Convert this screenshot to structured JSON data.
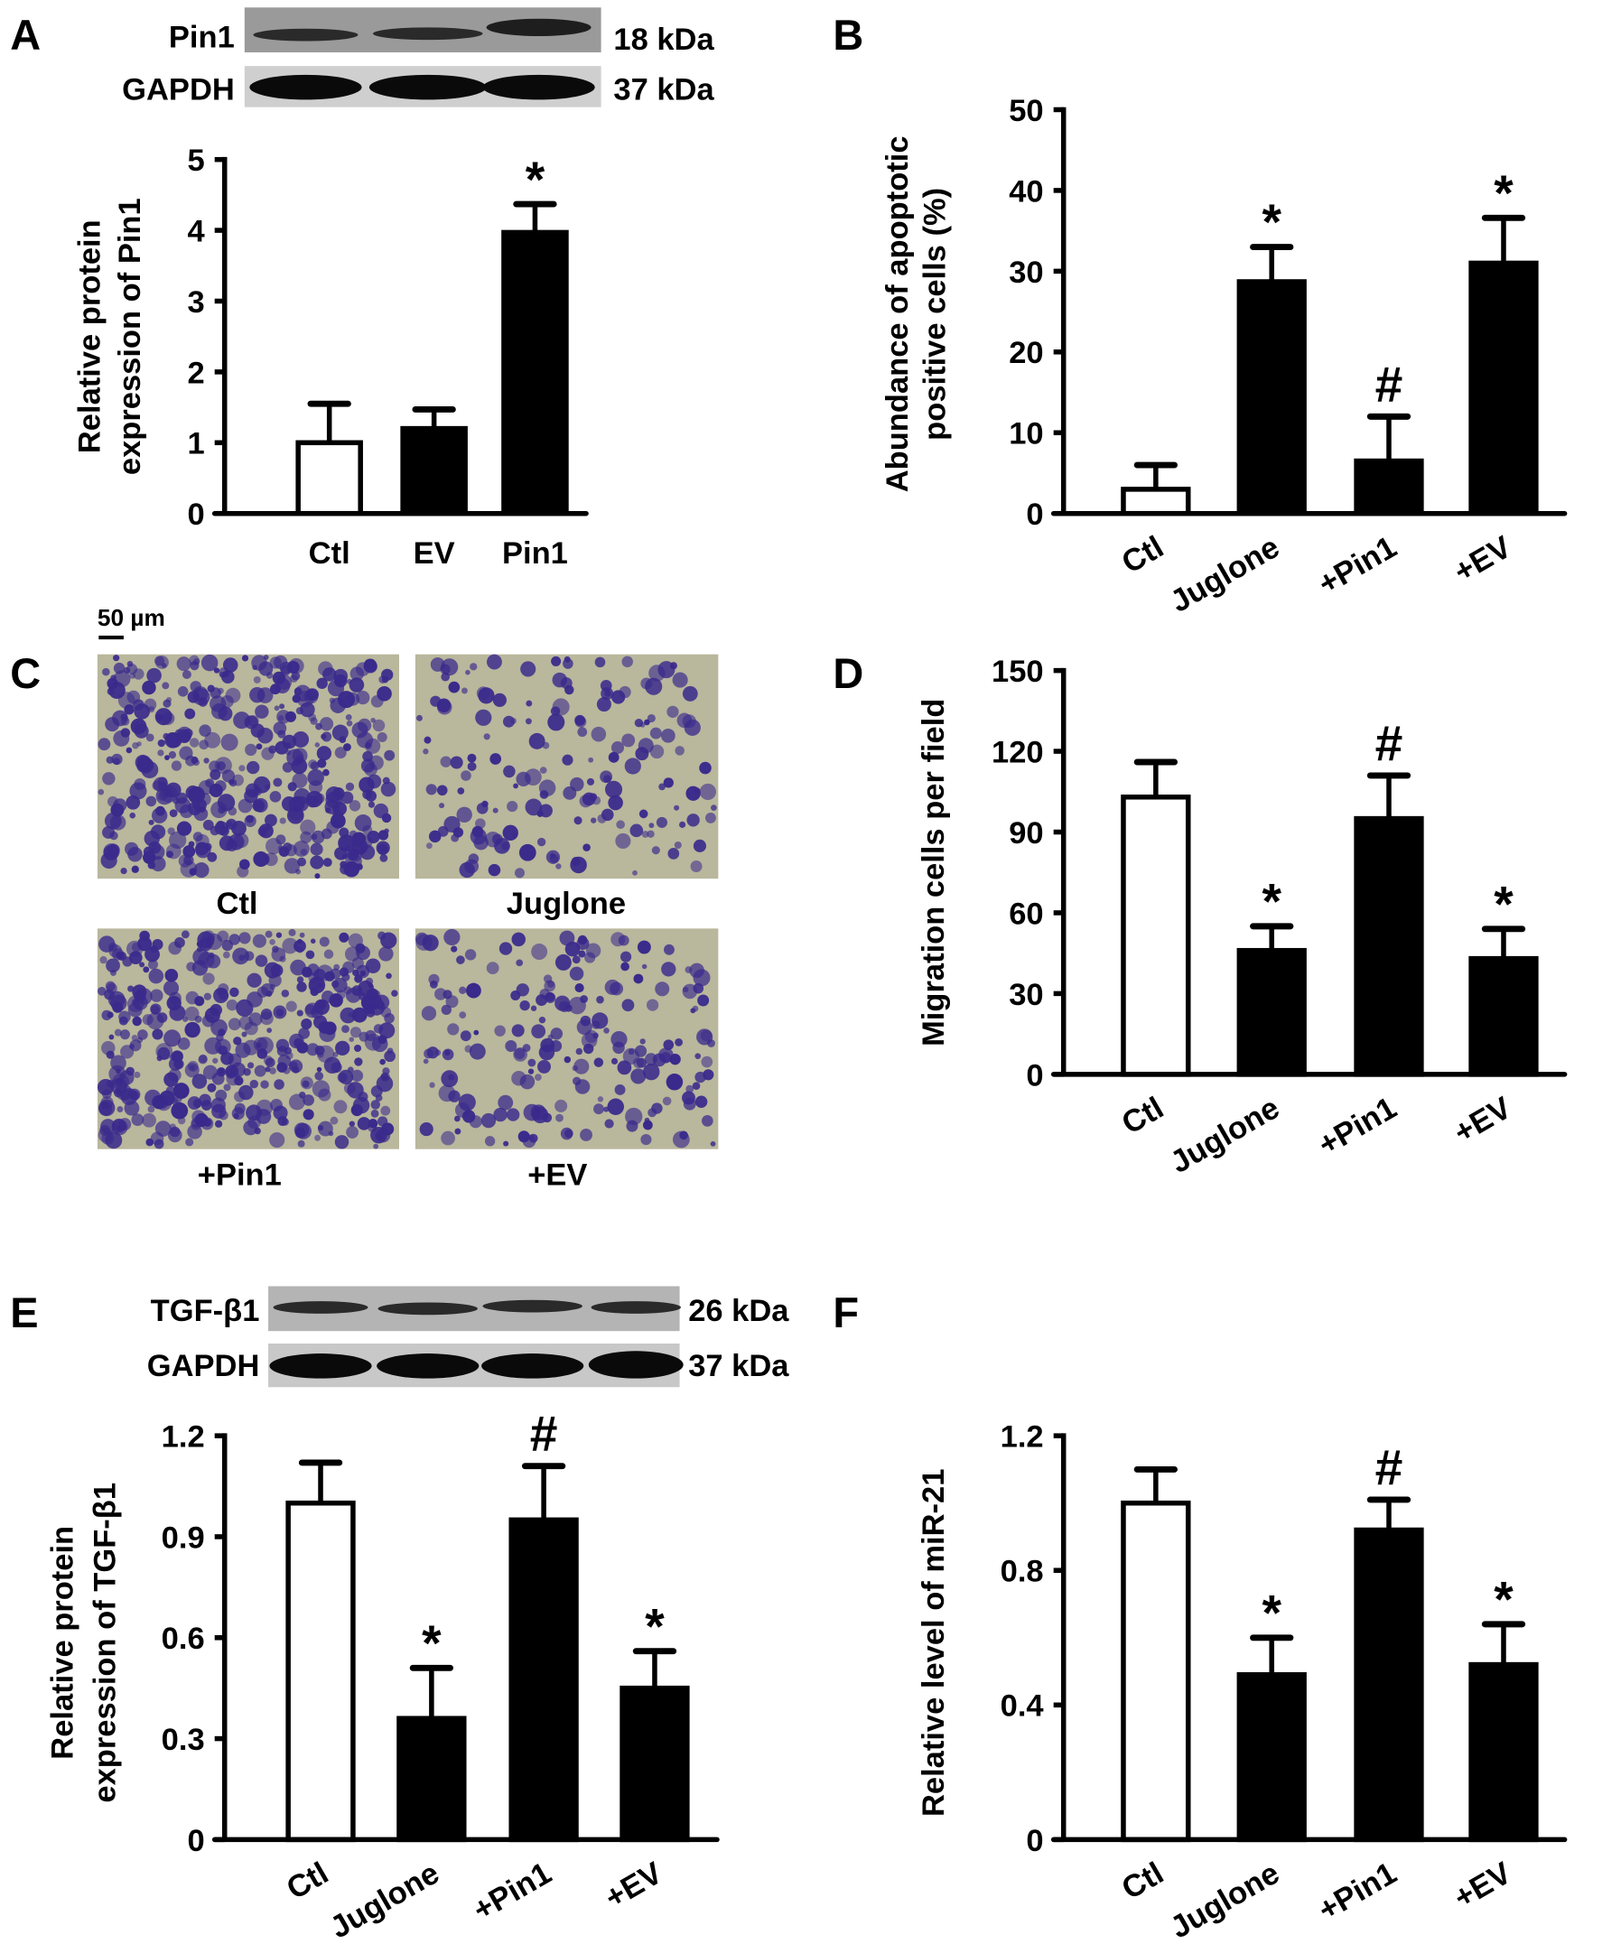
{
  "panels": {
    "A": {
      "letter": "A",
      "blot": {
        "rows": [
          {
            "protein": "Pin1",
            "size": "18 kDa"
          },
          {
            "protein": "GAPDH",
            "size": "37 kDa"
          }
        ]
      }
    },
    "B": {
      "letter": "B"
    },
    "C": {
      "letter": "C",
      "scale_bar": "50 µm",
      "images": [
        "Ctl",
        "Juglone",
        "+Pin1",
        "+EV"
      ]
    },
    "D": {
      "letter": "D"
    },
    "E": {
      "letter": "E",
      "blot": {
        "rows": [
          {
            "protein": "TGF-β1",
            "size": "26 kDa"
          },
          {
            "protein": "GAPDH",
            "size": "37 kDa"
          }
        ]
      }
    },
    "F": {
      "letter": "F"
    }
  },
  "colors": {
    "control_fill": "#ffffff",
    "treatment_fill": "#000000",
    "axis": "#000000",
    "stain_background": "#b9b79c",
    "stain_cells": "#3a2a8c"
  },
  "chart_data": [
    {
      "panel": "A",
      "type": "bar",
      "ylabel": [
        "Relative protein",
        "expression of Pin1"
      ],
      "categories": [
        "Ctl",
        "EV",
        "Pin1"
      ],
      "values": [
        1.0,
        1.2,
        3.97
      ],
      "errors": [
        0.55,
        0.27,
        0.4
      ],
      "annotations": [
        "",
        "",
        "*"
      ],
      "ylim": [
        0,
        5
      ],
      "yticks": [
        "0",
        "1",
        "2",
        "3",
        "4",
        "5"
      ],
      "grid": false
    },
    {
      "panel": "B",
      "type": "bar",
      "ylabel": [
        "Abundance of apoptotic",
        "positive cells (%)"
      ],
      "categories": [
        "Ctl",
        "Juglone",
        "+Pin1",
        "+EV"
      ],
      "values": [
        3,
        28.7,
        6.5,
        31
      ],
      "errors": [
        3,
        4.3,
        5.5,
        5.6
      ],
      "annotations": [
        "",
        "*",
        "#",
        "*"
      ],
      "ylim": [
        0,
        50
      ],
      "yticks": [
        "0",
        "10",
        "20",
        "30",
        "40",
        "50"
      ],
      "grid": false
    },
    {
      "panel": "D",
      "type": "bar",
      "ylabel": [
        "Migration cells per field"
      ],
      "categories": [
        "Ctl",
        "Juglone",
        "+Pin1",
        "+EV"
      ],
      "values": [
        103,
        46,
        95,
        43
      ],
      "errors": [
        13,
        9,
        16,
        11
      ],
      "annotations": [
        "",
        "*",
        "#",
        "*"
      ],
      "ylim": [
        0,
        150
      ],
      "yticks": [
        "0",
        "30",
        "60",
        "90",
        "120",
        "150"
      ],
      "grid": false
    },
    {
      "panel": "E",
      "type": "bar",
      "ylabel": [
        "Relative protein",
        "expression of TGF-β1"
      ],
      "categories": [
        "Ctl",
        "Juglone",
        "+Pin1",
        "+EV"
      ],
      "values": [
        1.0,
        0.36,
        0.95,
        0.45
      ],
      "errors": [
        0.12,
        0.15,
        0.16,
        0.11
      ],
      "annotations": [
        "",
        "*",
        "#",
        "*"
      ],
      "ylim": [
        0,
        1.2
      ],
      "yticks": [
        "0",
        "0.3",
        "0.6",
        "0.9",
        "1.2"
      ],
      "grid": false
    },
    {
      "panel": "F",
      "type": "bar",
      "ylabel": [
        "Relative level of miR-21"
      ],
      "categories": [
        "Ctl",
        "Juglone",
        "+Pin1",
        "+EV"
      ],
      "values": [
        1.0,
        0.49,
        0.92,
        0.52
      ],
      "errors": [
        0.1,
        0.11,
        0.09,
        0.12
      ],
      "annotations": [
        "",
        "*",
        "#",
        "*"
      ],
      "ylim": [
        0,
        1.2
      ],
      "yticks": [
        "0",
        "0.4",
        "0.8",
        "1.2"
      ],
      "grid": false
    }
  ]
}
